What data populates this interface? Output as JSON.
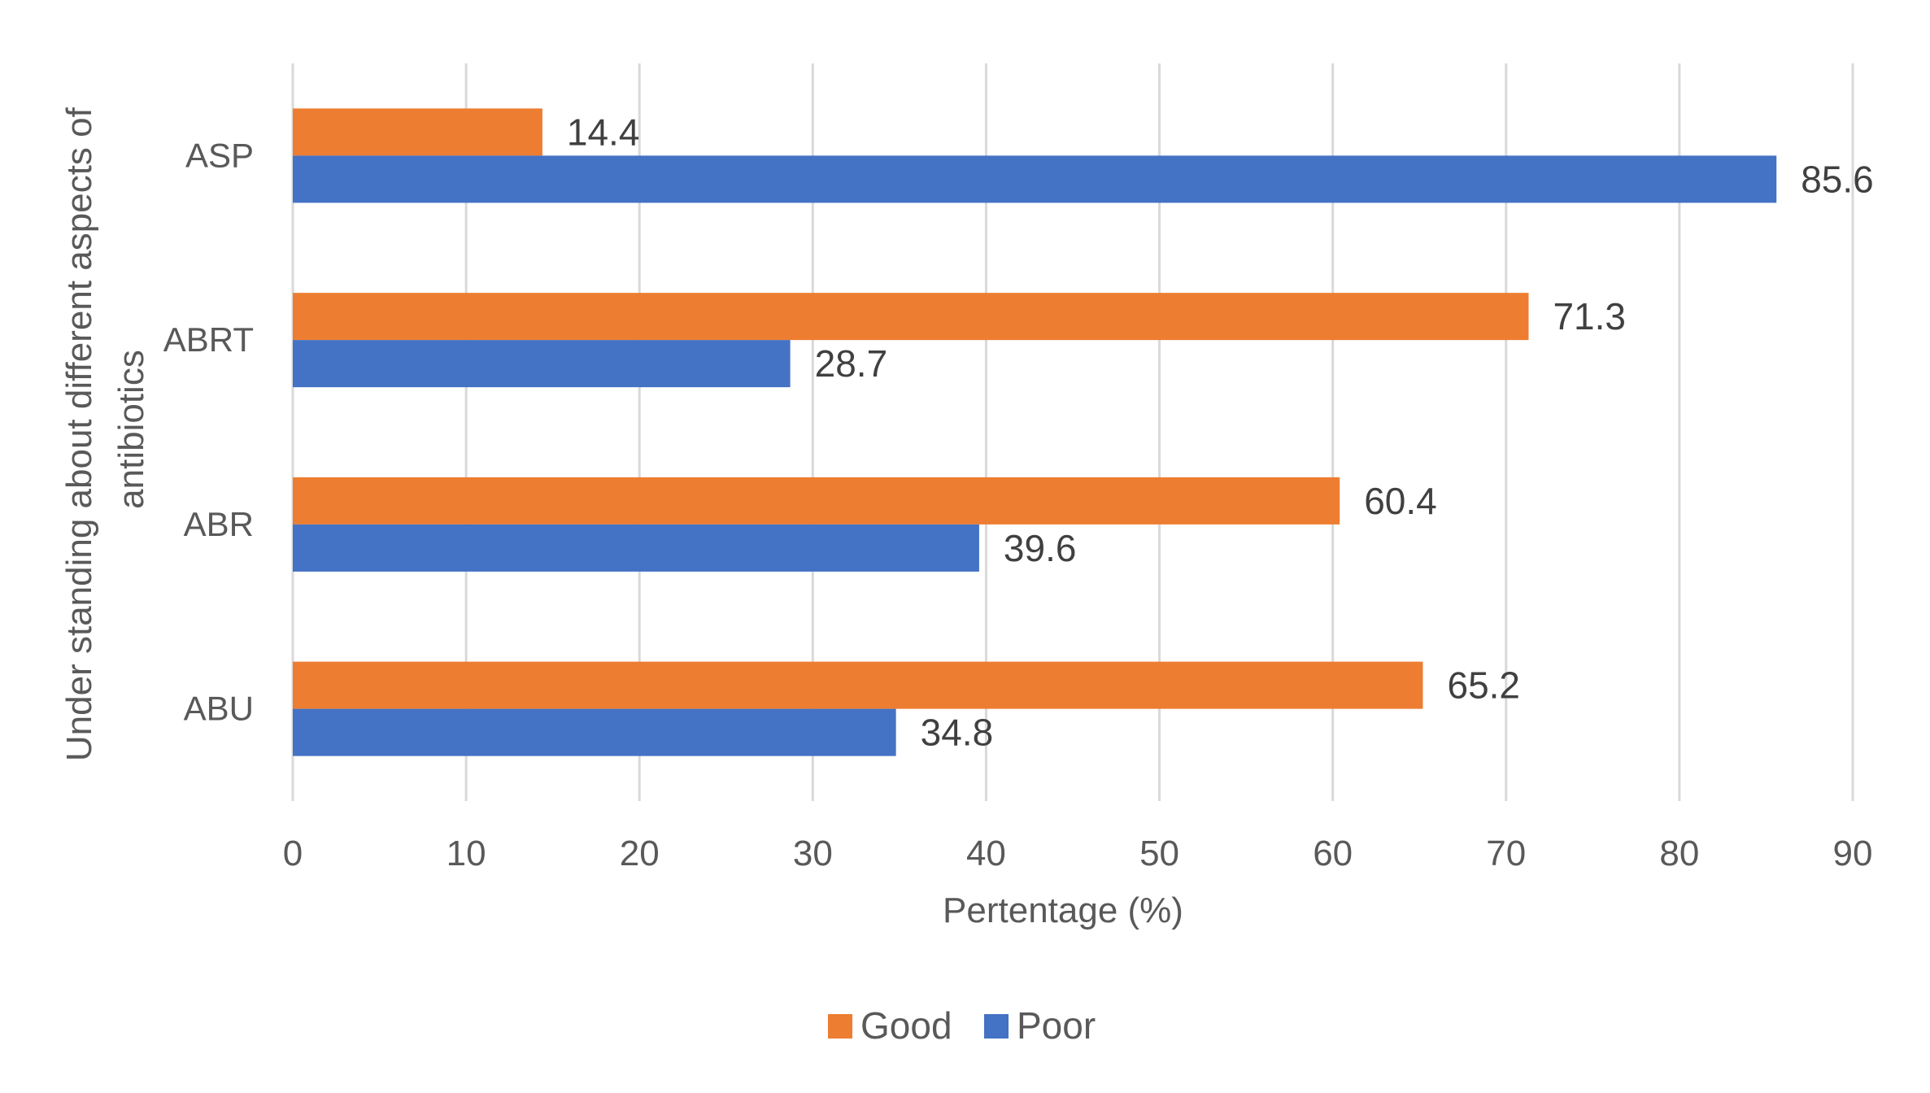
{
  "chart_data": {
    "type": "bar",
    "orientation": "horizontal",
    "categories": [
      "ASP",
      "ABRT",
      "ABR",
      "ABU"
    ],
    "series": [
      {
        "name": "Good",
        "color": "#ED7D31",
        "values": [
          14.4,
          71.3,
          60.4,
          65.2
        ]
      },
      {
        "name": "Poor",
        "color": "#4472C4",
        "values": [
          85.6,
          28.7,
          39.6,
          34.8
        ]
      }
    ],
    "xlabel": "Pertentage (%)",
    "ylabel_lines": [
      "Under standing about different aspects of",
      "antibiotics"
    ],
    "xlim": [
      0,
      90
    ],
    "xticks": [
      0,
      10,
      20,
      30,
      40,
      50,
      60,
      70,
      80,
      90
    ],
    "grid": "vertical",
    "legend_position": "bottom"
  }
}
